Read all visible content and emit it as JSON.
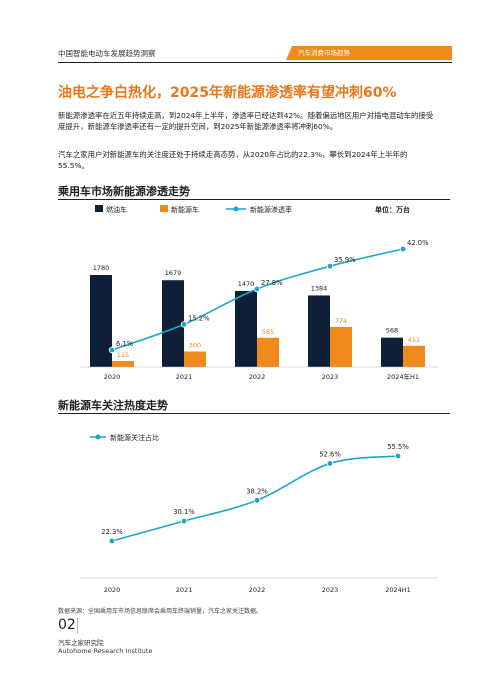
{
  "header": {
    "title": "中国智能电动车发展趋势洞察",
    "tag": "汽车消费市场趋势"
  },
  "headline": "油电之争白热化，2025年新能源渗透率有望冲刺60%",
  "paragraphs": [
    "新能源渗透率在近五年持续走高，到2024年上半年，渗透率已经达到42%。随着偏远地区用户对插电混动车的接受度提升，新能源车渗透率还有一定的提升空间，到2025年新能源渗透率将冲刺60%。",
    "汽车之家用户对新能源车的关注度还处于持续走高态势，从2020年占比的22.3%，攀长到2024年上半年的55.5%。"
  ],
  "section1_title": "乘用车市场新能源渗透走势",
  "section2_title": "新能源车关注热度走势",
  "colors": {
    "navy": "#0f1f38",
    "orange": "#f08a1c",
    "teal": "#1ba6c9",
    "headline": "#e8771a"
  },
  "chart_data": [
    {
      "type": "bar",
      "categories": [
        "2020",
        "2021",
        "2022",
        "2023",
        "2024年H1"
      ],
      "series": [
        {
          "name": "燃油车",
          "values": [
            1780,
            1679,
            1470,
            1384,
            568
          ]
        },
        {
          "name": "新能源车",
          "values": [
            115,
            300,
            565,
            774,
            411
          ]
        },
        {
          "name": "新能源渗透率",
          "type": "line",
          "values": [
            6.1,
            15.2,
            27.8,
            35.9,
            42.0
          ],
          "labels": [
            "6.1%",
            "15.2%",
            "27.8%",
            "35.9%",
            "42.0%"
          ]
        }
      ],
      "unit_label": "单位：万台",
      "legend_position": "top"
    },
    {
      "type": "line",
      "categories": [
        "2020",
        "2021",
        "2022",
        "2023",
        "2024H1"
      ],
      "series": [
        {
          "name": "新能源关注占比",
          "values": [
            22.3,
            30.1,
            38.2,
            52.6,
            55.5
          ],
          "labels": [
            "22.3%",
            "30.1%",
            "38.2%",
            "52.6%",
            "55.5%"
          ]
        }
      ],
      "legend_position": "top-left"
    }
  ],
  "footer": {
    "source": "数据来源：全国乘用车市场信息联席会乘用车终端销量，汽车之家关注数据。",
    "page_number": "02",
    "institute_cn": "汽车之家研究院",
    "institute_en": "Autohome Research Institute"
  }
}
